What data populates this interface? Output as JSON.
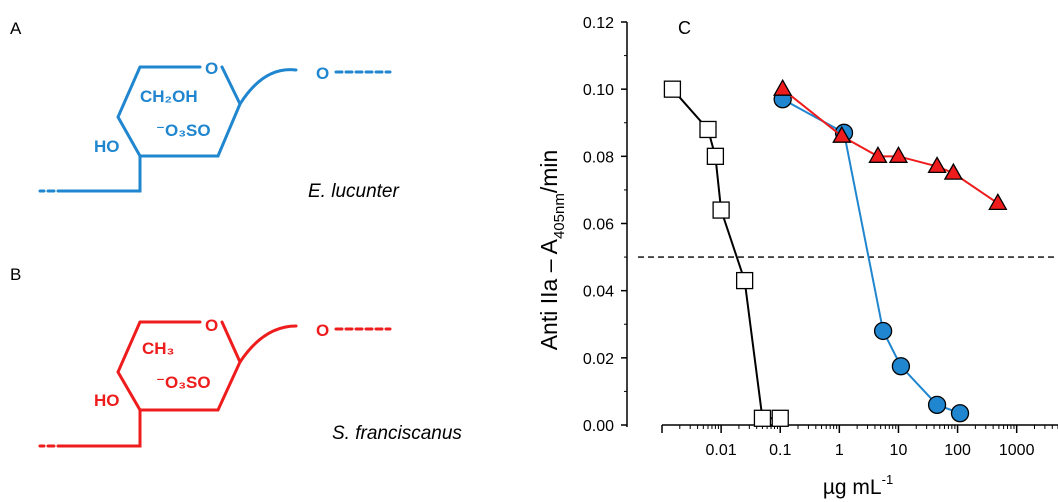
{
  "panels": {
    "a": {
      "letter": "A",
      "species": "E. lucunter",
      "color": "#1f86cf",
      "ring_oxygen": "O",
      "linkage_oxygen": "O",
      "substituent_label": "CH₂OH",
      "sulfate_label": "⁻O₃SO",
      "hydroxyl_label": "HO"
    },
    "b": {
      "letter": "B",
      "species": "S. franciscanus",
      "color": "#ee1c1c",
      "ring_oxygen": "O",
      "linkage_oxygen": "O",
      "substituent_label": "CH₃",
      "sulfate_label": "⁻O₃SO",
      "hydroxyl_label": "HO"
    },
    "c": {
      "letter": "C"
    }
  },
  "chart_data": {
    "type": "scatter",
    "xscale": "log",
    "xlim": [
      0.001,
      5000
    ],
    "ylim": [
      0,
      0.12
    ],
    "ylabel_main": "Anti IIa – A",
    "ylabel_sub": "405nm",
    "ylabel_tail": "/min",
    "xlabel_main": "µg mL",
    "xlabel_sup": "-1",
    "x_ticks": [
      "0.01",
      "0.1",
      "1",
      "10",
      "100",
      "1000"
    ],
    "x_tick_values": [
      0.01,
      0.1,
      1,
      10,
      100,
      1000
    ],
    "y_ticks": [
      "0.00",
      "0.02",
      "0.04",
      "0.06",
      "0.08",
      "0.10",
      "0.12"
    ],
    "y_tick_values": [
      0,
      0.02,
      0.04,
      0.06,
      0.08,
      0.1,
      0.12
    ],
    "reference_line_y": 0.05,
    "series": [
      {
        "marker": "square",
        "line_color": "#000000",
        "fill": "#ffffff",
        "x": [
          0.0015,
          0.006,
          0.008,
          0.01,
          0.025,
          0.05,
          0.1
        ],
        "y": [
          0.1,
          0.088,
          0.08,
          0.064,
          0.043,
          0.002,
          0.002
        ]
      },
      {
        "marker": "circle",
        "line_color": "#1f86cf",
        "fill": "#1f86cf",
        "x": [
          0.11,
          1.2,
          5.5,
          11,
          45,
          110
        ],
        "y": [
          0.097,
          0.087,
          0.028,
          0.0175,
          0.006,
          0.0035
        ]
      },
      {
        "marker": "triangle",
        "line_color": "#ee1c1c",
        "fill": "#ee1c1c",
        "x": [
          0.11,
          1.1,
          4.5,
          10,
          45,
          85,
          480
        ],
        "y": [
          0.1,
          0.086,
          0.08,
          0.08,
          0.077,
          0.075,
          0.066
        ]
      }
    ]
  }
}
